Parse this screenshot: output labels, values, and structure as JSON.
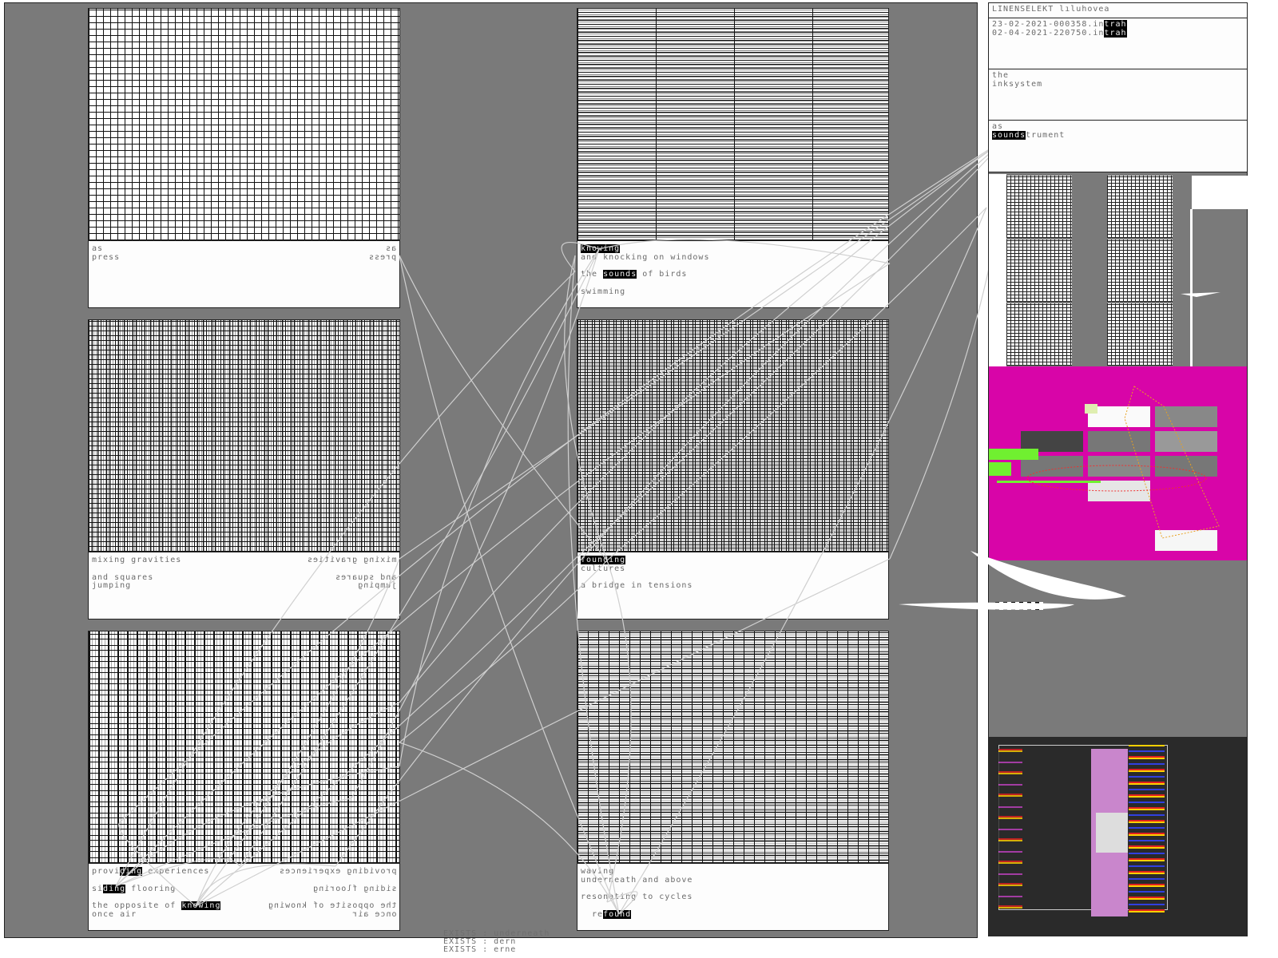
{
  "panels": [
    {
      "id": "as-press",
      "pattern": "g1",
      "lines": [
        [
          {
            "t": "as"
          }
        ],
        [
          {
            "t": "press"
          }
        ]
      ],
      "mirrored": true
    },
    {
      "id": "knowing",
      "pattern": "g2",
      "lines": [
        [
          {
            "t": "knowing",
            "hl": true
          }
        ],
        [
          {
            "t": "and knocking on windows"
          }
        ],
        [],
        [
          {
            "t": "the "
          },
          {
            "t": "sounds",
            "hl": true
          },
          {
            "t": " of birds"
          }
        ],
        [],
        [
          {
            "t": "swimming"
          }
        ]
      ],
      "mirrored": false
    },
    {
      "id": "mixing-gravities",
      "pattern": "g3",
      "lines": [
        [
          {
            "t": "mixing gravities"
          }
        ],
        [],
        [
          {
            "t": "and squares"
          }
        ],
        [
          {
            "t": "jumping"
          }
        ]
      ],
      "mirrored": true
    },
    {
      "id": "founding",
      "pattern": "g4",
      "lines": [
        [
          {
            "t": "founding",
            "hl": true
          }
        ],
        [
          {
            "t": "cultures"
          }
        ],
        [],
        [
          {
            "t": "a bridge in tensions"
          }
        ]
      ],
      "mirrored": false
    },
    {
      "id": "providing",
      "pattern": "g5",
      "lines": [
        [
          {
            "t": "provi"
          },
          {
            "t": "ding",
            "hl": true
          },
          {
            "t": " experiences"
          }
        ],
        [],
        [
          {
            "t": "si"
          },
          {
            "t": "ding",
            "hl": true
          },
          {
            "t": " flooring"
          }
        ],
        [],
        [
          {
            "t": "the opposite of "
          },
          {
            "t": "knowing",
            "hl": true
          }
        ],
        [
          {
            "t": "once air"
          }
        ]
      ],
      "mirrored": true
    },
    {
      "id": "waving",
      "pattern": "g6",
      "lines": [
        [
          {
            "t": "waving"
          }
        ],
        [
          {
            "t": "underneath and above"
          }
        ],
        [],
        [
          {
            "t": "resonating to cycles"
          }
        ],
        [],
        [
          {
            "t": "  re"
          },
          {
            "t": "found",
            "hl": true
          }
        ]
      ],
      "mirrored": false
    }
  ],
  "sidebar": {
    "title": "LINENSELEKT lıluhovea",
    "entries": [
      [
        {
          "t": "23-02-2021-000358.in"
        },
        {
          "t": "trah",
          "hl": true
        }
      ],
      [
        {
          "t": "02-04-2021-220750.in"
        },
        {
          "t": "trah",
          "hl": true
        }
      ]
    ],
    "box2": [
      [
        {
          "t": "the"
        }
      ],
      [
        {
          "t": "inksystem"
        }
      ]
    ],
    "box3": [
      [
        {
          "t": "as"
        }
      ],
      [
        {
          "t": "sounds",
          "hl": true
        },
        {
          "t": "trument"
        }
      ]
    ]
  },
  "exists": [
    "EXISTS : underneath",
    "EXISTS : dern",
    "EXISTS : erne"
  ],
  "colors": {
    "background": "#7a7a7a",
    "magenta": "#d805a8",
    "green": "#70f030",
    "highlight": "#000000",
    "wire": "#cfcfcf"
  }
}
